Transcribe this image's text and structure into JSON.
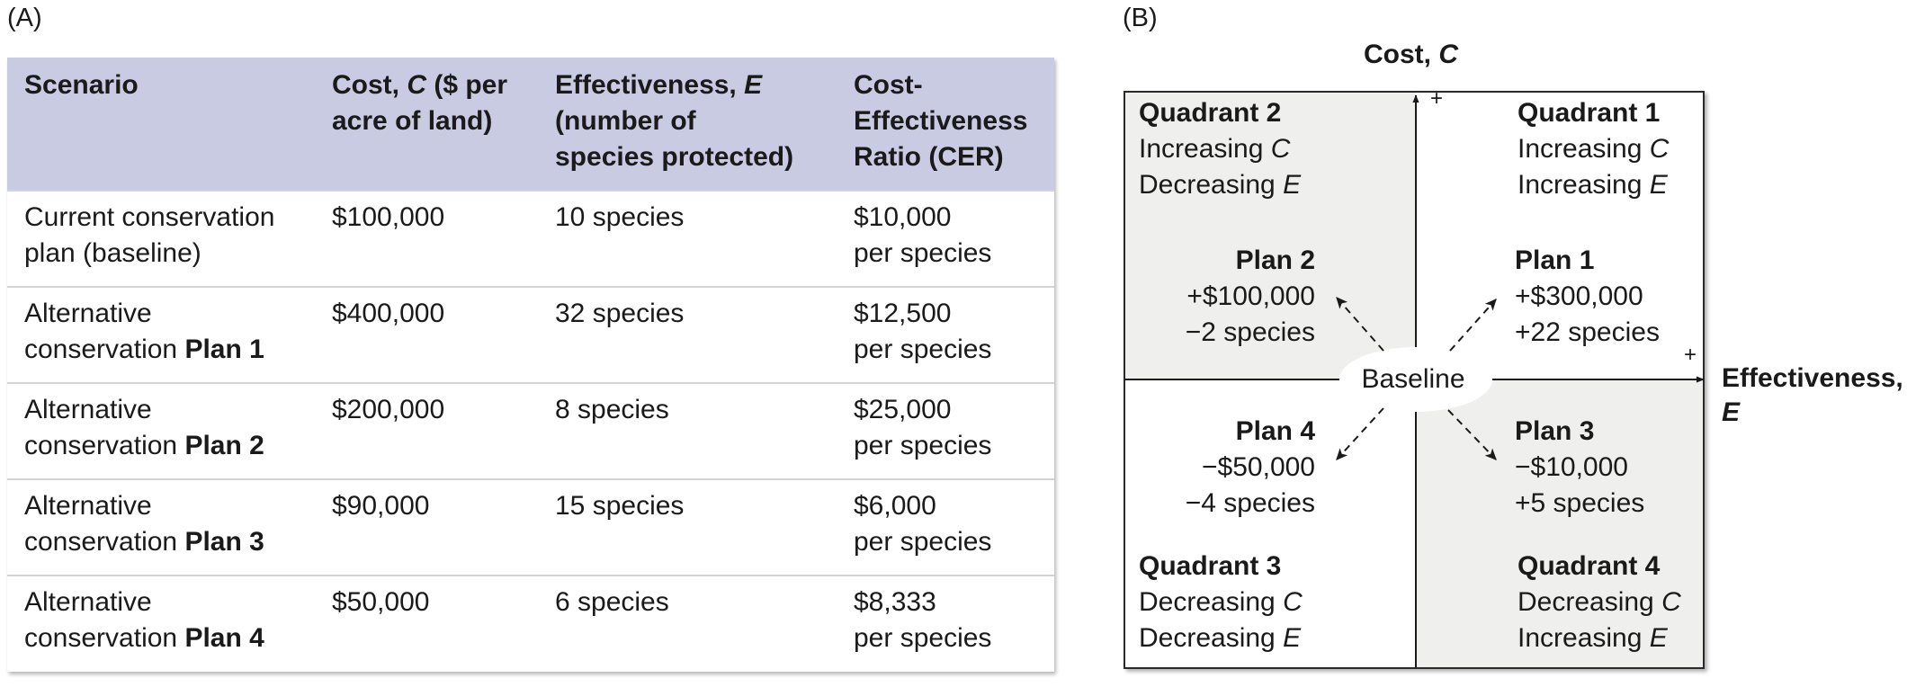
{
  "panel_a": {
    "label": "(A)",
    "headers": [
      {
        "pre": "Cost, ",
        "italic": "C",
        "post": " ($ per",
        "line2": "acre of land)",
        "line3": ""
      },
      {
        "pre": "Effectiveness, ",
        "italic": "E",
        "post": "",
        "line2": "(number of",
        "line3": "species protected)"
      },
      {
        "pre": "Cost-",
        "italic": "",
        "post": "",
        "line2": "Effectiveness",
        "line3": "Ratio (CER)"
      }
    ],
    "scenario_header": "Scenario",
    "rows": [
      {
        "l1": "Current conservation",
        "l2": "plan (baseline)",
        "plan": "",
        "cost": "$100,000",
        "effect": "10 species",
        "cer1": "$10,000",
        "cer2": "per species"
      },
      {
        "l1": "Alternative",
        "l2": "conservation ",
        "plan": "Plan 1",
        "cost": "$400,000",
        "effect": "32 species",
        "cer1": "$12,500",
        "cer2": "per species"
      },
      {
        "l1": "Alternative",
        "l2": "conservation ",
        "plan": "Plan 2",
        "cost": "$200,000",
        "effect": "8 species",
        "cer1": "$25,000",
        "cer2": "per species"
      },
      {
        "l1": "Alternative",
        "l2": "conservation ",
        "plan": "Plan 3",
        "cost": "$90,000",
        "effect": "15 species",
        "cer1": "$6,000",
        "cer2": "per species"
      },
      {
        "l1": "Alternative",
        "l2": "conservation ",
        "plan": "Plan 4",
        "cost": "$50,000",
        "effect": "6 species",
        "cer1": "$8,333",
        "cer2": "per species"
      }
    ]
  },
  "panel_b": {
    "label": "(B)",
    "axis_cost": {
      "pre": "Cost, ",
      "italic": "C",
      "plus": "+"
    },
    "axis_eff": {
      "line1": "Effectiveness,",
      "italic": "E",
      "plus": "+"
    },
    "baseline": "Baseline",
    "quadrants": {
      "q1": {
        "title": "Quadrant 1",
        "l1": "Increasing ",
        "v1": "C",
        "l2": "Increasing ",
        "v2": "E"
      },
      "q2": {
        "title": "Quadrant 2",
        "l1": "Increasing ",
        "v1": "C",
        "l2": "Decreasing ",
        "v2": "E"
      },
      "q3": {
        "title": "Quadrant 3",
        "l1": "Decreasing ",
        "v1": "C",
        "l2": "Decreasing ",
        "v2": "E"
      },
      "q4": {
        "title": "Quadrant 4",
        "l1": "Decreasing ",
        "v1": "C",
        "l2": "Increasing ",
        "v2": "E"
      }
    },
    "plans": {
      "p1": {
        "title": "Plan 1",
        "cost": "+$300,000",
        "species": "+22 species"
      },
      "p2": {
        "title": "Plan 2",
        "cost": "+$100,000",
        "species": "−2 species"
      },
      "p3": {
        "title": "Plan 3",
        "cost": "−$10,000",
        "species": "+5 species"
      },
      "p4": {
        "title": "Plan 4",
        "cost": "−$50,000",
        "species": "−4 species"
      }
    }
  }
}
